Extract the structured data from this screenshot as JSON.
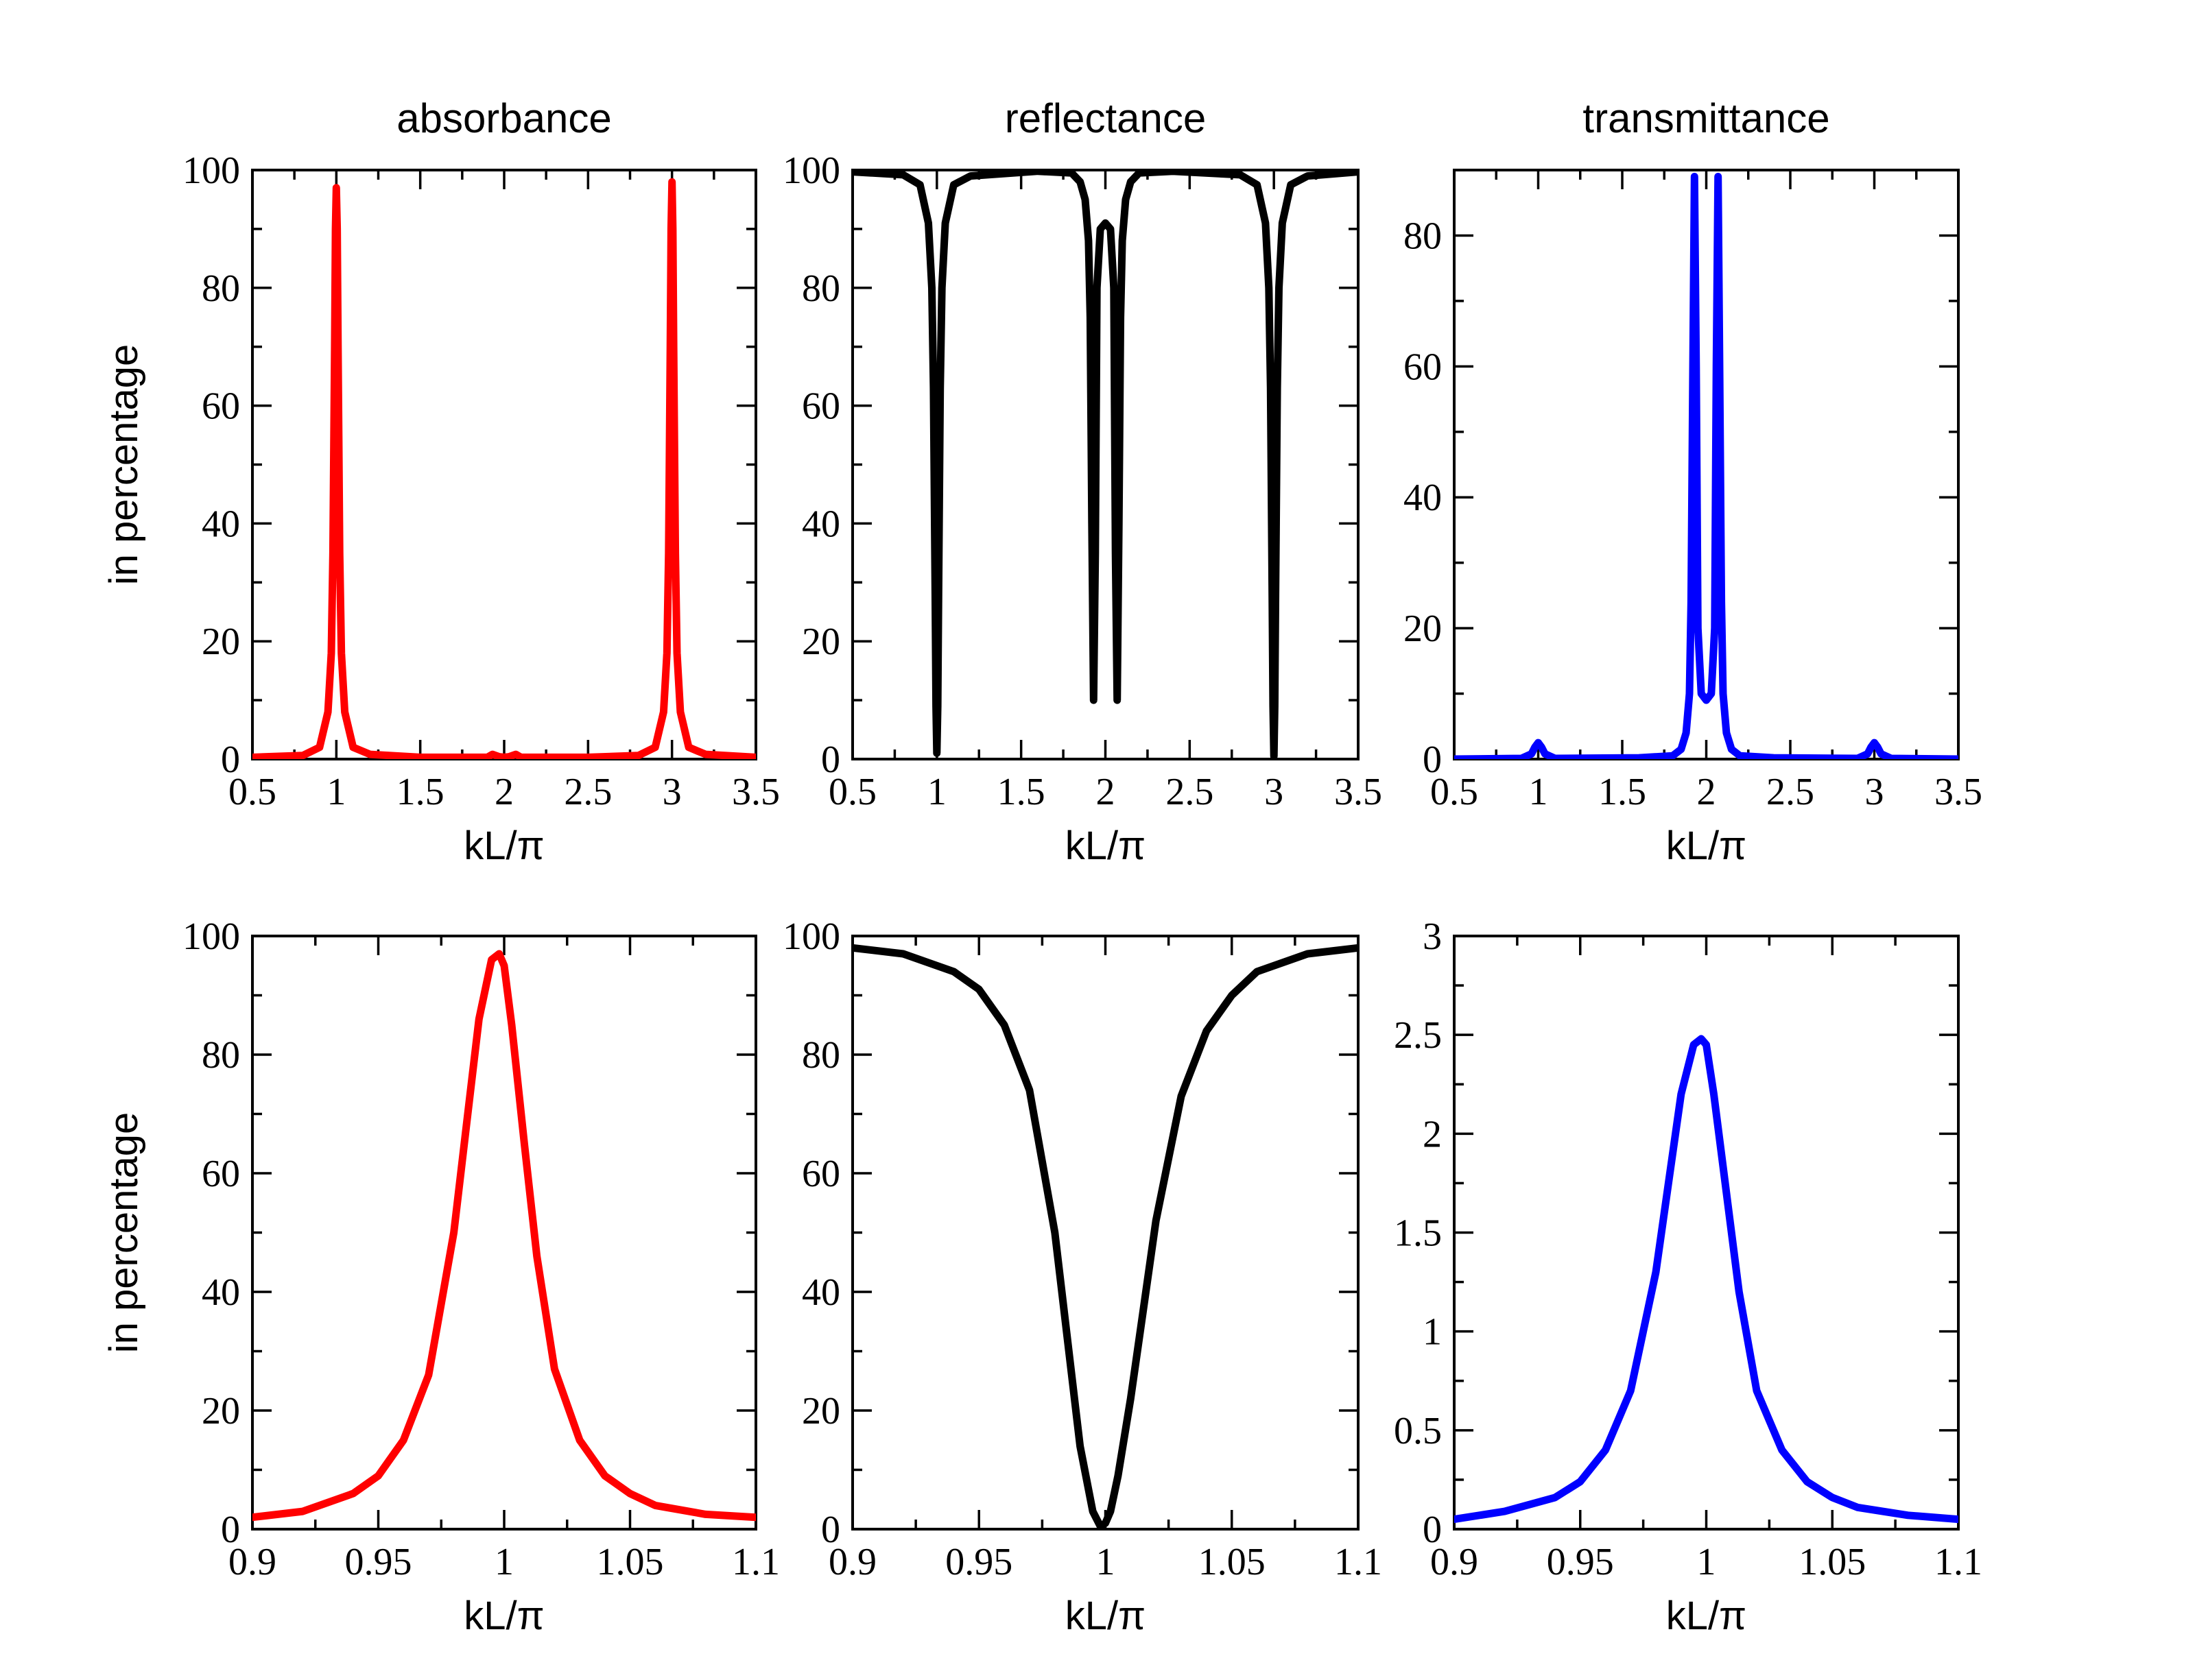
{
  "chart_data": [
    {
      "type": "line",
      "title": "absorbance",
      "xlabel": "kL/π",
      "ylabel": "in percentage",
      "xlim": [
        0.5,
        3.5
      ],
      "ylim": [
        0,
        100
      ],
      "xticks": [
        0.5,
        1,
        1.5,
        2,
        2.5,
        3,
        3.5
      ],
      "xtick_labels": [
        "0.5",
        "1",
        "1.5",
        "2",
        "2.5",
        "3",
        "3.5"
      ],
      "yticks": [
        0,
        20,
        40,
        60,
        80,
        100
      ],
      "ytick_labels": [
        "0",
        "20",
        "40",
        "60",
        "80",
        "100"
      ],
      "series": [
        {
          "name": "absorbance",
          "color": "#ff0000",
          "x": [
            0.5,
            0.8,
            0.9,
            0.95,
            0.97,
            0.98,
            0.99,
            0.995,
            1.0,
            1.005,
            1.01,
            1.02,
            1.03,
            1.05,
            1.1,
            1.2,
            1.5,
            1.9,
            1.93,
            1.95,
            1.97,
            2.0,
            2.03,
            2.05,
            2.07,
            2.1,
            2.5,
            2.8,
            2.9,
            2.95,
            2.97,
            2.98,
            2.99,
            2.995,
            3.0,
            3.005,
            3.01,
            3.02,
            3.03,
            3.05,
            3.1,
            3.2,
            3.5
          ],
          "y": [
            0.3,
            0.6,
            2,
            8,
            18,
            35,
            70,
            90,
            97,
            90,
            70,
            35,
            18,
            8,
            2,
            0.8,
            0.3,
            0.3,
            0.8,
            0.6,
            0.4,
            0.3,
            0.4,
            0.6,
            0.8,
            0.3,
            0.3,
            0.6,
            2,
            8,
            18,
            35,
            70,
            90,
            98,
            90,
            70,
            35,
            18,
            8,
            2,
            0.8,
            0.3
          ]
        }
      ]
    },
    {
      "type": "line",
      "title": "reflectance",
      "xlabel": "kL/π",
      "ylabel": "",
      "xlim": [
        0.5,
        3.5
      ],
      "ylim": [
        0,
        100
      ],
      "xticks": [
        0.5,
        1,
        1.5,
        2,
        2.5,
        3,
        3.5
      ],
      "xtick_labels": [
        "0.5",
        "1",
        "1.5",
        "2",
        "2.5",
        "3",
        "3.5"
      ],
      "yticks": [
        0,
        20,
        40,
        60,
        80,
        100
      ],
      "ytick_labels": [
        "0",
        "20",
        "40",
        "60",
        "80",
        "100"
      ],
      "series": [
        {
          "name": "reflectance",
          "color": "#000000",
          "x": [
            0.5,
            0.8,
            0.9,
            0.95,
            0.97,
            0.98,
            0.99,
            0.995,
            1.0,
            1.005,
            1.01,
            1.02,
            1.03,
            1.05,
            1.1,
            1.2,
            1.6,
            1.8,
            1.85,
            1.88,
            1.9,
            1.91,
            1.92,
            1.93,
            1.94,
            1.95,
            1.97,
            2.0,
            2.03,
            2.05,
            2.06,
            2.07,
            2.08,
            2.09,
            2.1,
            2.12,
            2.15,
            2.2,
            2.4,
            2.8,
            2.9,
            2.95,
            2.97,
            2.98,
            2.99,
            2.995,
            3.0,
            3.005,
            3.01,
            3.02,
            3.03,
            3.05,
            3.1,
            3.2,
            3.5
          ],
          "y": [
            99.7,
            99.2,
            97.5,
            91,
            80,
            63,
            28,
            9,
            1,
            9,
            28,
            63,
            80,
            91,
            97.5,
            99,
            99.8,
            99.5,
            98,
            95,
            88,
            75,
            40,
            10,
            35,
            80,
            90,
            91,
            90,
            80,
            35,
            10,
            40,
            75,
            88,
            95,
            98,
            99.5,
            99.8,
            99.2,
            97.5,
            91,
            80,
            63,
            28,
            9,
            0.5,
            9,
            28,
            63,
            80,
            91,
            97.5,
            99,
            99.7
          ]
        }
      ]
    },
    {
      "type": "line",
      "title": "transmittance",
      "xlabel": "kL/π",
      "ylabel": "",
      "xlim": [
        0.5,
        3.5
      ],
      "ylim": [
        0,
        90
      ],
      "xticks": [
        0.5,
        1,
        1.5,
        2,
        2.5,
        3,
        3.5
      ],
      "xtick_labels": [
        "0.5",
        "1",
        "1.5",
        "2",
        "2.5",
        "3",
        "3.5"
      ],
      "yticks": [
        0,
        20,
        40,
        60,
        80
      ],
      "ytick_labels": [
        "0",
        "20",
        "40",
        "60",
        "80"
      ],
      "series": [
        {
          "name": "transmittance",
          "color": "#0000ff",
          "x": [
            0.5,
            0.9,
            0.96,
            0.98,
            1.0,
            1.02,
            1.04,
            1.1,
            1.6,
            1.8,
            1.85,
            1.88,
            1.9,
            1.91,
            1.92,
            1.93,
            1.94,
            1.95,
            1.97,
            2.0,
            2.03,
            2.05,
            2.06,
            2.07,
            2.08,
            2.09,
            2.1,
            2.12,
            2.15,
            2.2,
            2.4,
            2.9,
            2.96,
            2.98,
            3.0,
            3.02,
            3.04,
            3.1,
            3.5
          ],
          "y": [
            0,
            0.1,
            0.8,
            1.8,
            2.5,
            1.8,
            0.8,
            0.1,
            0.2,
            0.5,
            1.5,
            4,
            10,
            24,
            58,
            89,
            60,
            20,
            10,
            9,
            10,
            20,
            60,
            89,
            58,
            24,
            10,
            4,
            1.5,
            0.5,
            0.2,
            0.1,
            0.8,
            1.8,
            2.5,
            1.8,
            0.8,
            0.1,
            0
          ]
        }
      ]
    },
    {
      "type": "line",
      "title": "",
      "xlabel": "kL/π",
      "ylabel": "in percentage",
      "xlim": [
        0.9,
        1.1
      ],
      "ylim": [
        0,
        100
      ],
      "xticks": [
        0.9,
        0.95,
        1,
        1.05,
        1.1
      ],
      "xtick_labels": [
        "0.9",
        "0.95",
        "1",
        "1.05",
        "1.1"
      ],
      "yticks": [
        0,
        20,
        40,
        60,
        80,
        100
      ],
      "ytick_labels": [
        "0",
        "20",
        "40",
        "60",
        "80",
        "100"
      ],
      "series": [
        {
          "name": "absorbance",
          "color": "#ff0000",
          "x": [
            0.9,
            0.92,
            0.94,
            0.95,
            0.96,
            0.97,
            0.98,
            0.985,
            0.99,
            0.995,
            0.998,
            1.0,
            1.003,
            1.008,
            1.013,
            1.02,
            1.03,
            1.04,
            1.05,
            1.06,
            1.08,
            1.1
          ],
          "y": [
            2,
            3,
            6,
            9,
            15,
            26,
            50,
            68,
            86,
            96,
            97,
            95,
            85,
            65,
            46,
            27,
            15,
            9,
            6,
            4,
            2.5,
            2
          ]
        }
      ]
    },
    {
      "type": "line",
      "title": "",
      "xlabel": "kL/π",
      "ylabel": "",
      "xlim": [
        0.9,
        1.1
      ],
      "ylim": [
        0,
        100
      ],
      "xticks": [
        0.9,
        0.95,
        1,
        1.05,
        1.1
      ],
      "xtick_labels": [
        "0.9",
        "0.95",
        "1",
        "1.05",
        "1.1"
      ],
      "yticks": [
        0,
        20,
        40,
        60,
        80,
        100
      ],
      "ytick_labels": [
        "0",
        "20",
        "40",
        "60",
        "80",
        "100"
      ],
      "series": [
        {
          "name": "reflectance",
          "color": "#000000",
          "x": [
            0.9,
            0.92,
            0.94,
            0.95,
            0.96,
            0.97,
            0.98,
            0.985,
            0.99,
            0.995,
            0.998,
            1.0,
            1.002,
            1.005,
            1.01,
            1.015,
            1.02,
            1.03,
            1.04,
            1.05,
            1.06,
            1.08,
            1.1
          ],
          "y": [
            98,
            97,
            94,
            91,
            85,
            74,
            50,
            32,
            14,
            3,
            0.5,
            1,
            3,
            9,
            22,
            37,
            52,
            73,
            84,
            90,
            94,
            97,
            98
          ]
        }
      ]
    },
    {
      "type": "line",
      "title": "",
      "xlabel": "kL/π",
      "ylabel": "",
      "xlim": [
        0.9,
        1.1
      ],
      "ylim": [
        0,
        3
      ],
      "xticks": [
        0.9,
        0.95,
        1,
        1.05,
        1.1
      ],
      "xtick_labels": [
        "0.9",
        "0.95",
        "1",
        "1.05",
        "1.1"
      ],
      "yticks": [
        0,
        0.5,
        1,
        1.5,
        2,
        2.5,
        3
      ],
      "ytick_labels": [
        "0",
        "0.5",
        "1",
        "1.5",
        "2",
        "2.5",
        "3"
      ],
      "series": [
        {
          "name": "transmittance",
          "color": "#0000ff",
          "x": [
            0.9,
            0.92,
            0.94,
            0.95,
            0.96,
            0.97,
            0.98,
            0.985,
            0.99,
            0.995,
            0.998,
            1.0,
            1.003,
            1.008,
            1.013,
            1.02,
            1.03,
            1.04,
            1.05,
            1.06,
            1.08,
            1.1
          ],
          "y": [
            0.05,
            0.09,
            0.16,
            0.24,
            0.4,
            0.7,
            1.3,
            1.75,
            2.2,
            2.45,
            2.48,
            2.45,
            2.2,
            1.7,
            1.2,
            0.7,
            0.4,
            0.24,
            0.16,
            0.11,
            0.07,
            0.05
          ]
        }
      ]
    }
  ]
}
